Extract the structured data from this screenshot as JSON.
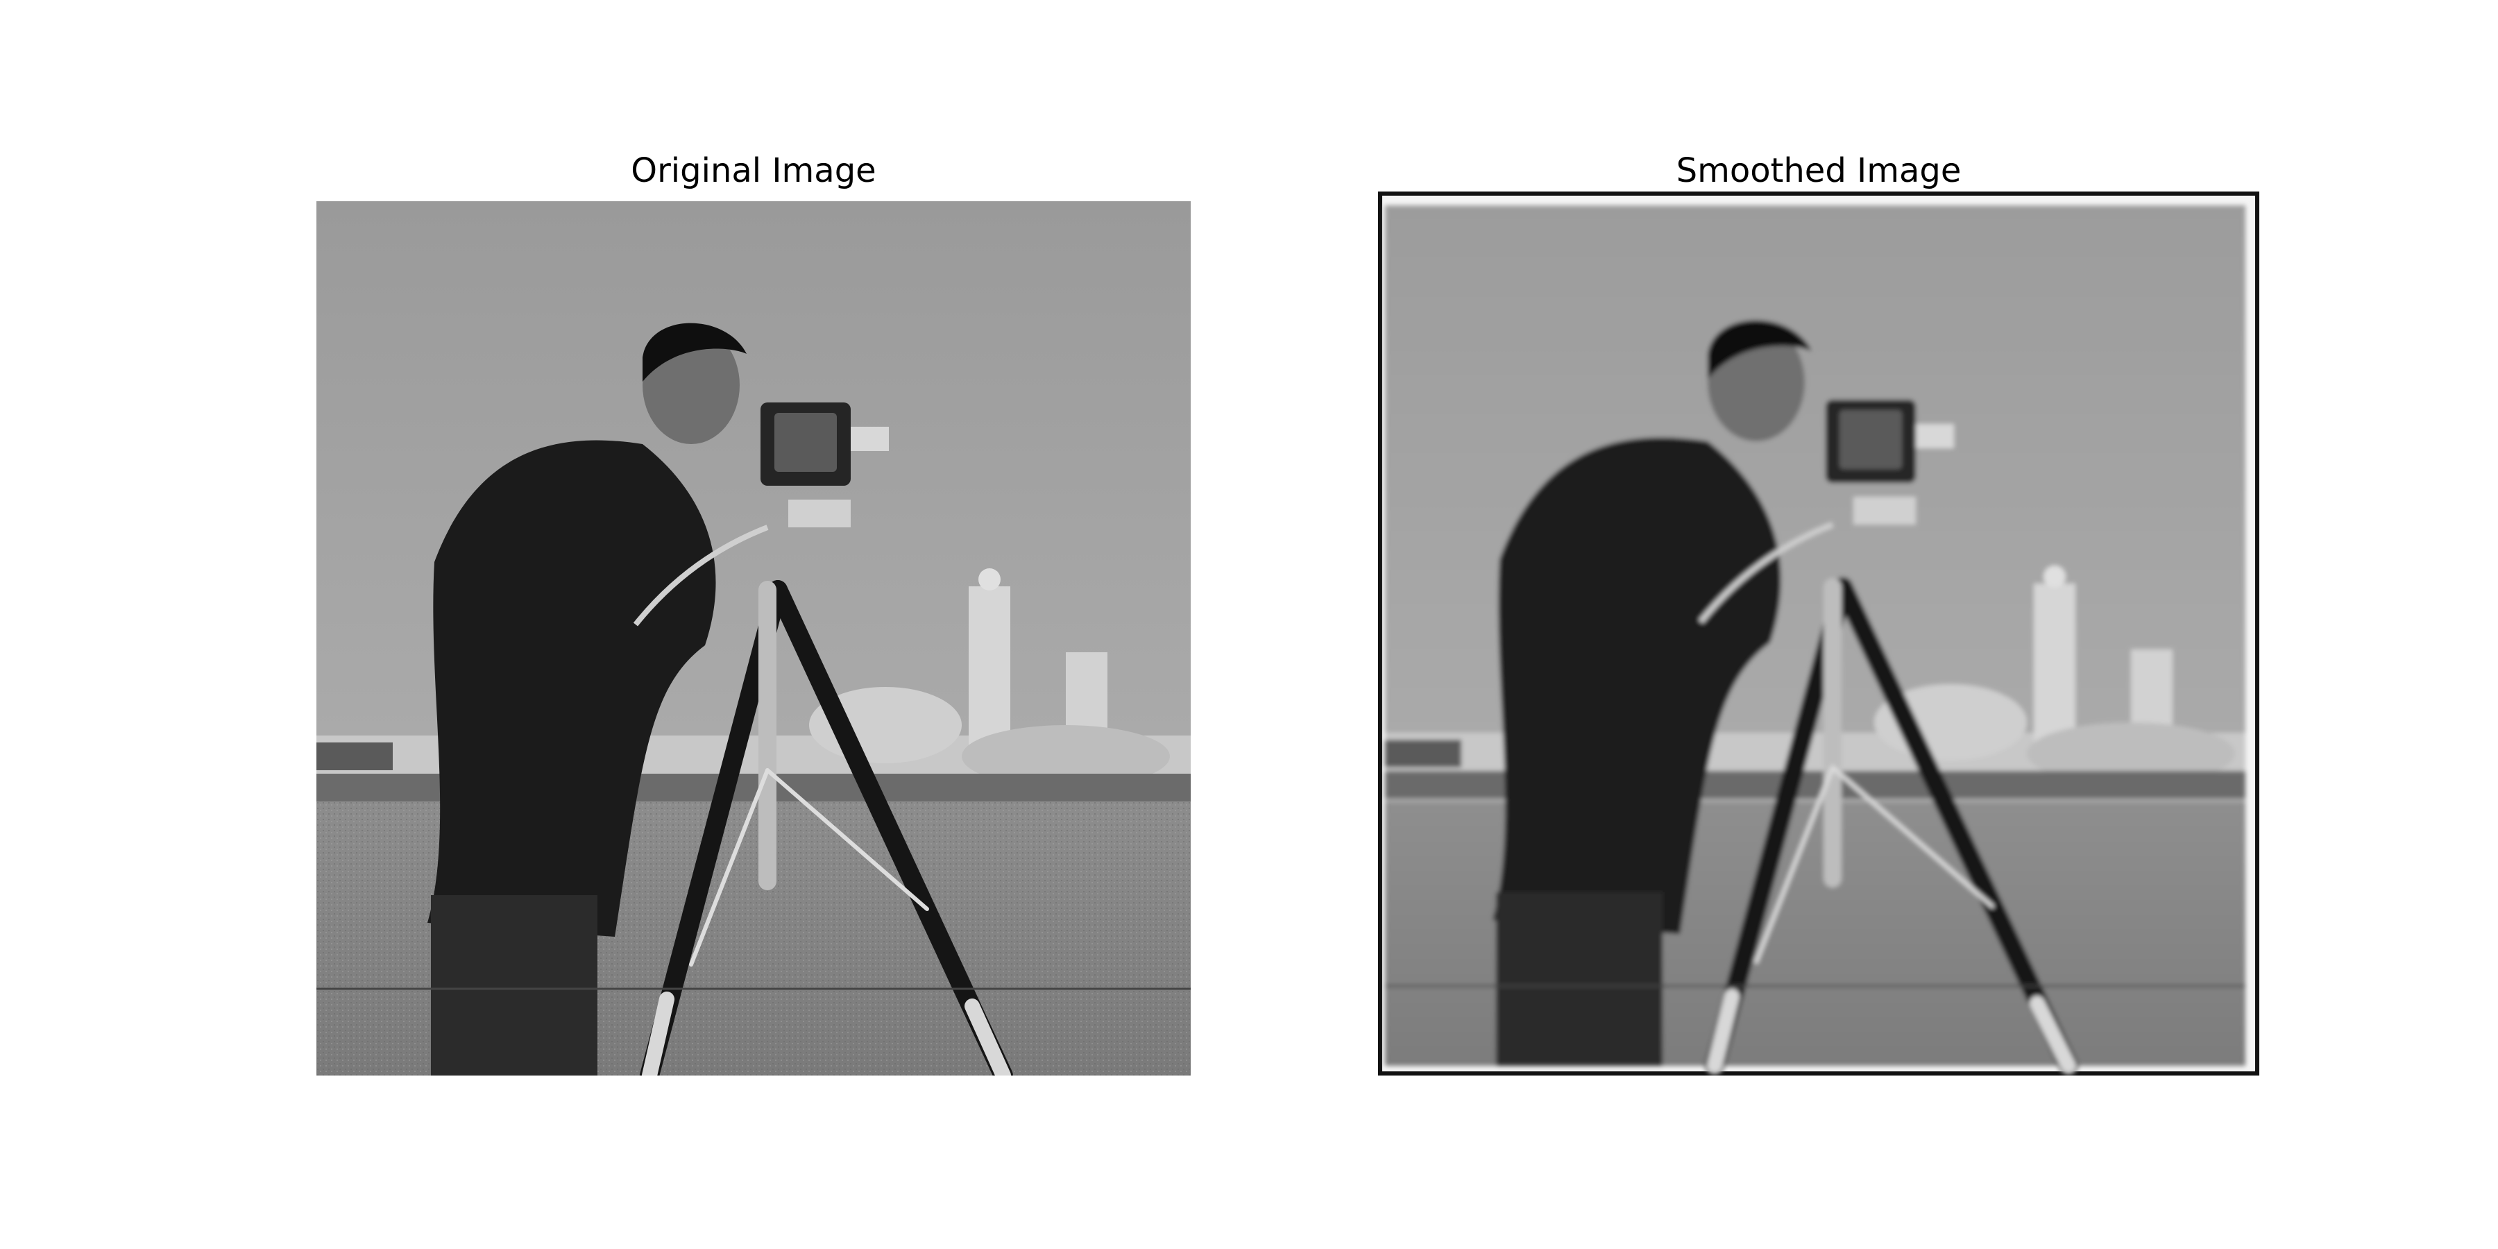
{
  "figure": {
    "panels": [
      {
        "title": "Original Image"
      },
      {
        "title": "Smoothed Image"
      }
    ]
  }
}
